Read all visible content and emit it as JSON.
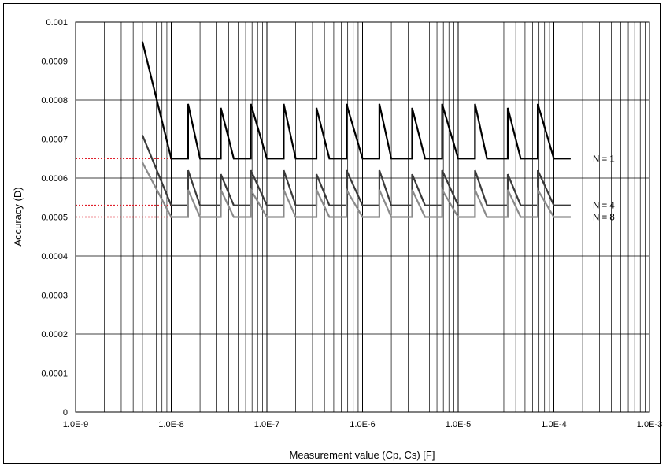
{
  "chart_data": {
    "type": "line",
    "title": "",
    "xlabel": "Measurement value (Cp, Cs) [F]",
    "ylabel": "Accuracy (D)",
    "x_scale": "log",
    "xlim": [
      1e-09,
      0.001
    ],
    "ylim": [
      0,
      0.001
    ],
    "grid": true,
    "x_ticks": [
      "1.0E-9",
      "1.0E-8",
      "1.0E-7",
      "1.0E-6",
      "1.0E-5",
      "1.0E-4",
      "1.0E-3"
    ],
    "y_ticks": [
      "0",
      "0.0001",
      "0.0002",
      "0.0003",
      "0.0004",
      "0.0005",
      "0.0006",
      "0.0007",
      "0.0008",
      "0.0009",
      "0.001"
    ],
    "reference_lines": [
      0.00065,
      0.00053,
      0.0005
    ],
    "reference_color": "#e0202c",
    "series": [
      {
        "name": "N = 1",
        "color": "#000000",
        "x": [
          5e-09,
          1e-08,
          1.5e-08,
          1.5e-08,
          2e-08,
          3.3e-08,
          3.3e-08,
          4.5e-08,
          6.8e-08,
          6.8e-08,
          1e-07,
          1.5e-07,
          1.5e-07,
          2e-07,
          3.3e-07,
          3.3e-07,
          4.5e-07,
          6.8e-07,
          6.8e-07,
          1e-06,
          1.5e-06,
          1.5e-06,
          2e-06,
          3.3e-06,
          3.3e-06,
          4.5e-06,
          6.8e-06,
          6.8e-06,
          1e-05,
          1.5e-05,
          1.5e-05,
          2e-05,
          3.3e-05,
          3.3e-05,
          4.5e-05,
          6.8e-05,
          6.8e-05,
          0.0001,
          0.00015
        ],
        "y": [
          0.00095,
          0.00065,
          0.00065,
          0.00079,
          0.00065,
          0.00065,
          0.00078,
          0.00065,
          0.00065,
          0.00079,
          0.00065,
          0.00065,
          0.00079,
          0.00065,
          0.00065,
          0.00078,
          0.00065,
          0.00065,
          0.00079,
          0.00065,
          0.00065,
          0.00079,
          0.00065,
          0.00065,
          0.00078,
          0.00065,
          0.00065,
          0.00079,
          0.00065,
          0.00065,
          0.00079,
          0.00065,
          0.00065,
          0.00078,
          0.00065,
          0.00065,
          0.00079,
          0.00065,
          0.00065
        ]
      },
      {
        "name": "N = 4",
        "color": "#3a3a3a",
        "x": [
          5e-09,
          1e-08,
          1.5e-08,
          1.5e-08,
          2e-08,
          3.3e-08,
          3.3e-08,
          4.5e-08,
          6.8e-08,
          6.8e-08,
          1e-07,
          1.5e-07,
          1.5e-07,
          2e-07,
          3.3e-07,
          3.3e-07,
          4.5e-07,
          6.8e-07,
          6.8e-07,
          1e-06,
          1.5e-06,
          1.5e-06,
          2e-06,
          3.3e-06,
          3.3e-06,
          4.5e-06,
          6.8e-06,
          6.8e-06,
          1e-05,
          1.5e-05,
          1.5e-05,
          2e-05,
          3.3e-05,
          3.3e-05,
          4.5e-05,
          6.8e-05,
          6.8e-05,
          0.0001,
          0.00015
        ],
        "y": [
          0.00071,
          0.00053,
          0.00053,
          0.00062,
          0.00053,
          0.00053,
          0.00061,
          0.00053,
          0.00053,
          0.00062,
          0.00053,
          0.00053,
          0.00062,
          0.00053,
          0.00053,
          0.00061,
          0.00053,
          0.00053,
          0.00062,
          0.00053,
          0.00053,
          0.00062,
          0.00053,
          0.00053,
          0.00061,
          0.00053,
          0.00053,
          0.00062,
          0.00053,
          0.00053,
          0.00062,
          0.00053,
          0.00053,
          0.00061,
          0.00053,
          0.00053,
          0.00062,
          0.00053,
          0.00053
        ]
      },
      {
        "name": "N = 8",
        "color": "#8a8a8a",
        "x": [
          5e-09,
          1e-08,
          1.5e-08,
          1.5e-08,
          2e-08,
          3.3e-08,
          3.3e-08,
          4.5e-08,
          6.8e-08,
          6.8e-08,
          1e-07,
          1.5e-07,
          1.5e-07,
          2e-07,
          3.3e-07,
          3.3e-07,
          4.5e-07,
          6.8e-07,
          6.8e-07,
          1e-06,
          1.5e-06,
          1.5e-06,
          2e-06,
          3.3e-06,
          3.3e-06,
          4.5e-06,
          6.8e-06,
          6.8e-06,
          1e-05,
          1.5e-05,
          1.5e-05,
          2e-05,
          3.3e-05,
          3.3e-05,
          4.5e-05,
          6.8e-05,
          6.8e-05,
          0.0001,
          0.00015
        ],
        "y": [
          0.00064,
          0.0005,
          0.0005,
          0.00057,
          0.0005,
          0.0005,
          0.00057,
          0.0005,
          0.0005,
          0.00057,
          0.0005,
          0.0005,
          0.00057,
          0.0005,
          0.0005,
          0.00057,
          0.0005,
          0.0005,
          0.00057,
          0.0005,
          0.0005,
          0.00057,
          0.0005,
          0.0005,
          0.00057,
          0.0005,
          0.0005,
          0.00057,
          0.0005,
          0.0005,
          0.00057,
          0.0005,
          0.0005,
          0.00057,
          0.0005,
          0.0005,
          0.00057,
          0.0005,
          0.0005
        ]
      }
    ]
  }
}
